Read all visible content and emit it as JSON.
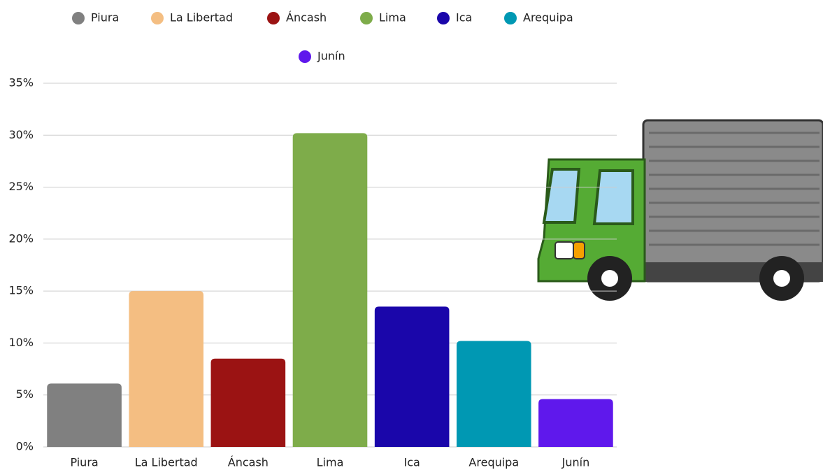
{
  "chart_data": {
    "type": "bar",
    "categories": [
      "Piura",
      "La Libertad",
      "Áncash",
      "Lima",
      "Ica",
      "Arequipa",
      "Junín"
    ],
    "values": [
      6.1,
      15.0,
      8.5,
      30.2,
      13.5,
      10.2,
      4.6
    ],
    "colors": [
      "#808080",
      "#f4be82",
      "#9b1313",
      "#7eac4a",
      "#1a06aa",
      "#0098b3",
      "#5f18ec"
    ],
    "ylim": [
      0,
      35
    ],
    "yticks": [
      {
        "value": 0,
        "label": "0%"
      },
      {
        "value": 5,
        "label": "5%"
      },
      {
        "value": 10,
        "label": "10%"
      },
      {
        "value": 15,
        "label": "15%"
      },
      {
        "value": 20,
        "label": "20%"
      },
      {
        "value": 25,
        "label": "25%"
      },
      {
        "value": 30,
        "label": "30%"
      },
      {
        "value": 35,
        "label": "35%"
      }
    ],
    "grid": true
  }
}
